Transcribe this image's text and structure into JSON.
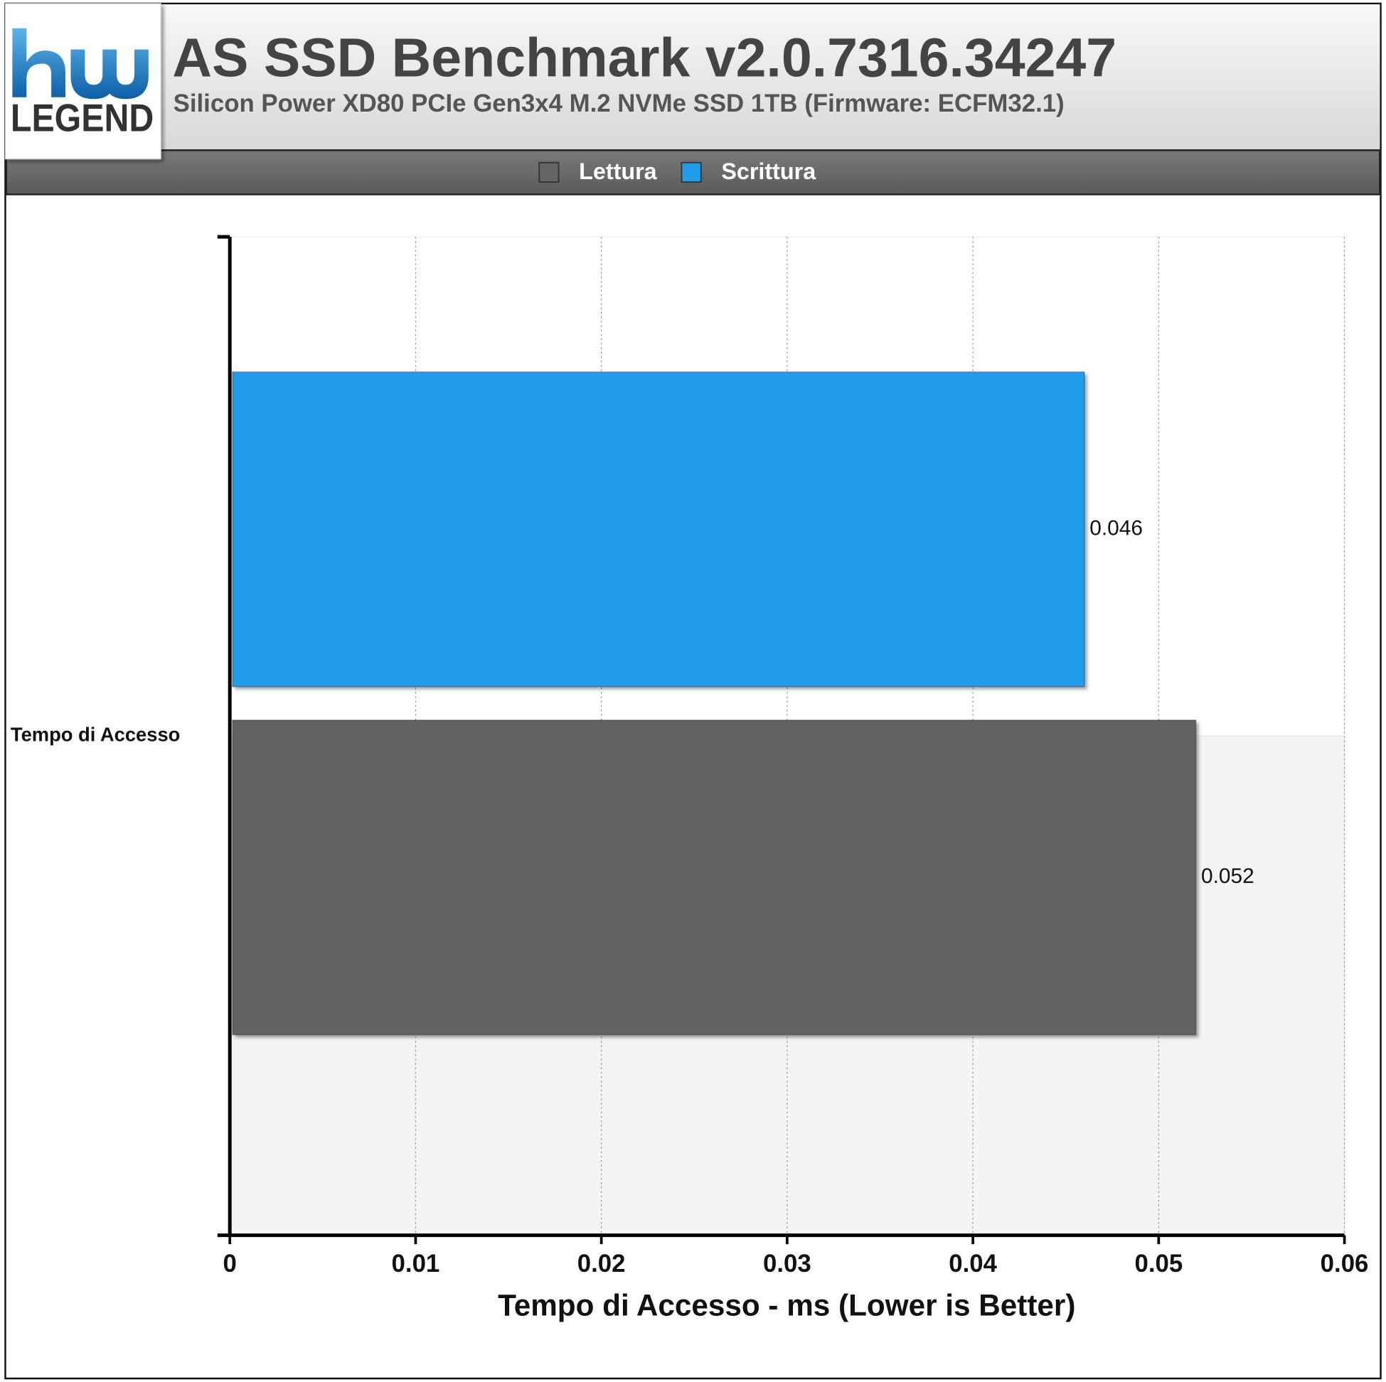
{
  "chart_data": {
    "type": "bar",
    "orientation": "horizontal",
    "logo": "LEGEND",
    "title": "AS SSD Benchmark v2.0.7316.34247",
    "subtitle": "Silicon Power XD80 PCIe Gen3x4 M.2 NVMe SSD 1TB (Firmware: ECFM32.1)",
    "x_label": "Tempo di Accesso - ms (Lower is Better)",
    "categories": [
      "Tempo di Accesso"
    ],
    "series": [
      {
        "name": "Lettura",
        "color": "#646464",
        "values": [
          0.052
        ]
      },
      {
        "name": "Scrittura",
        "color": "#219ded",
        "values": [
          0.046
        ]
      }
    ],
    "xlim": [
      0,
      0.06
    ],
    "xticks": [
      0,
      0.01,
      0.02,
      0.03,
      0.04,
      0.05,
      0.06
    ],
    "grid": true,
    "legend": "top"
  }
}
